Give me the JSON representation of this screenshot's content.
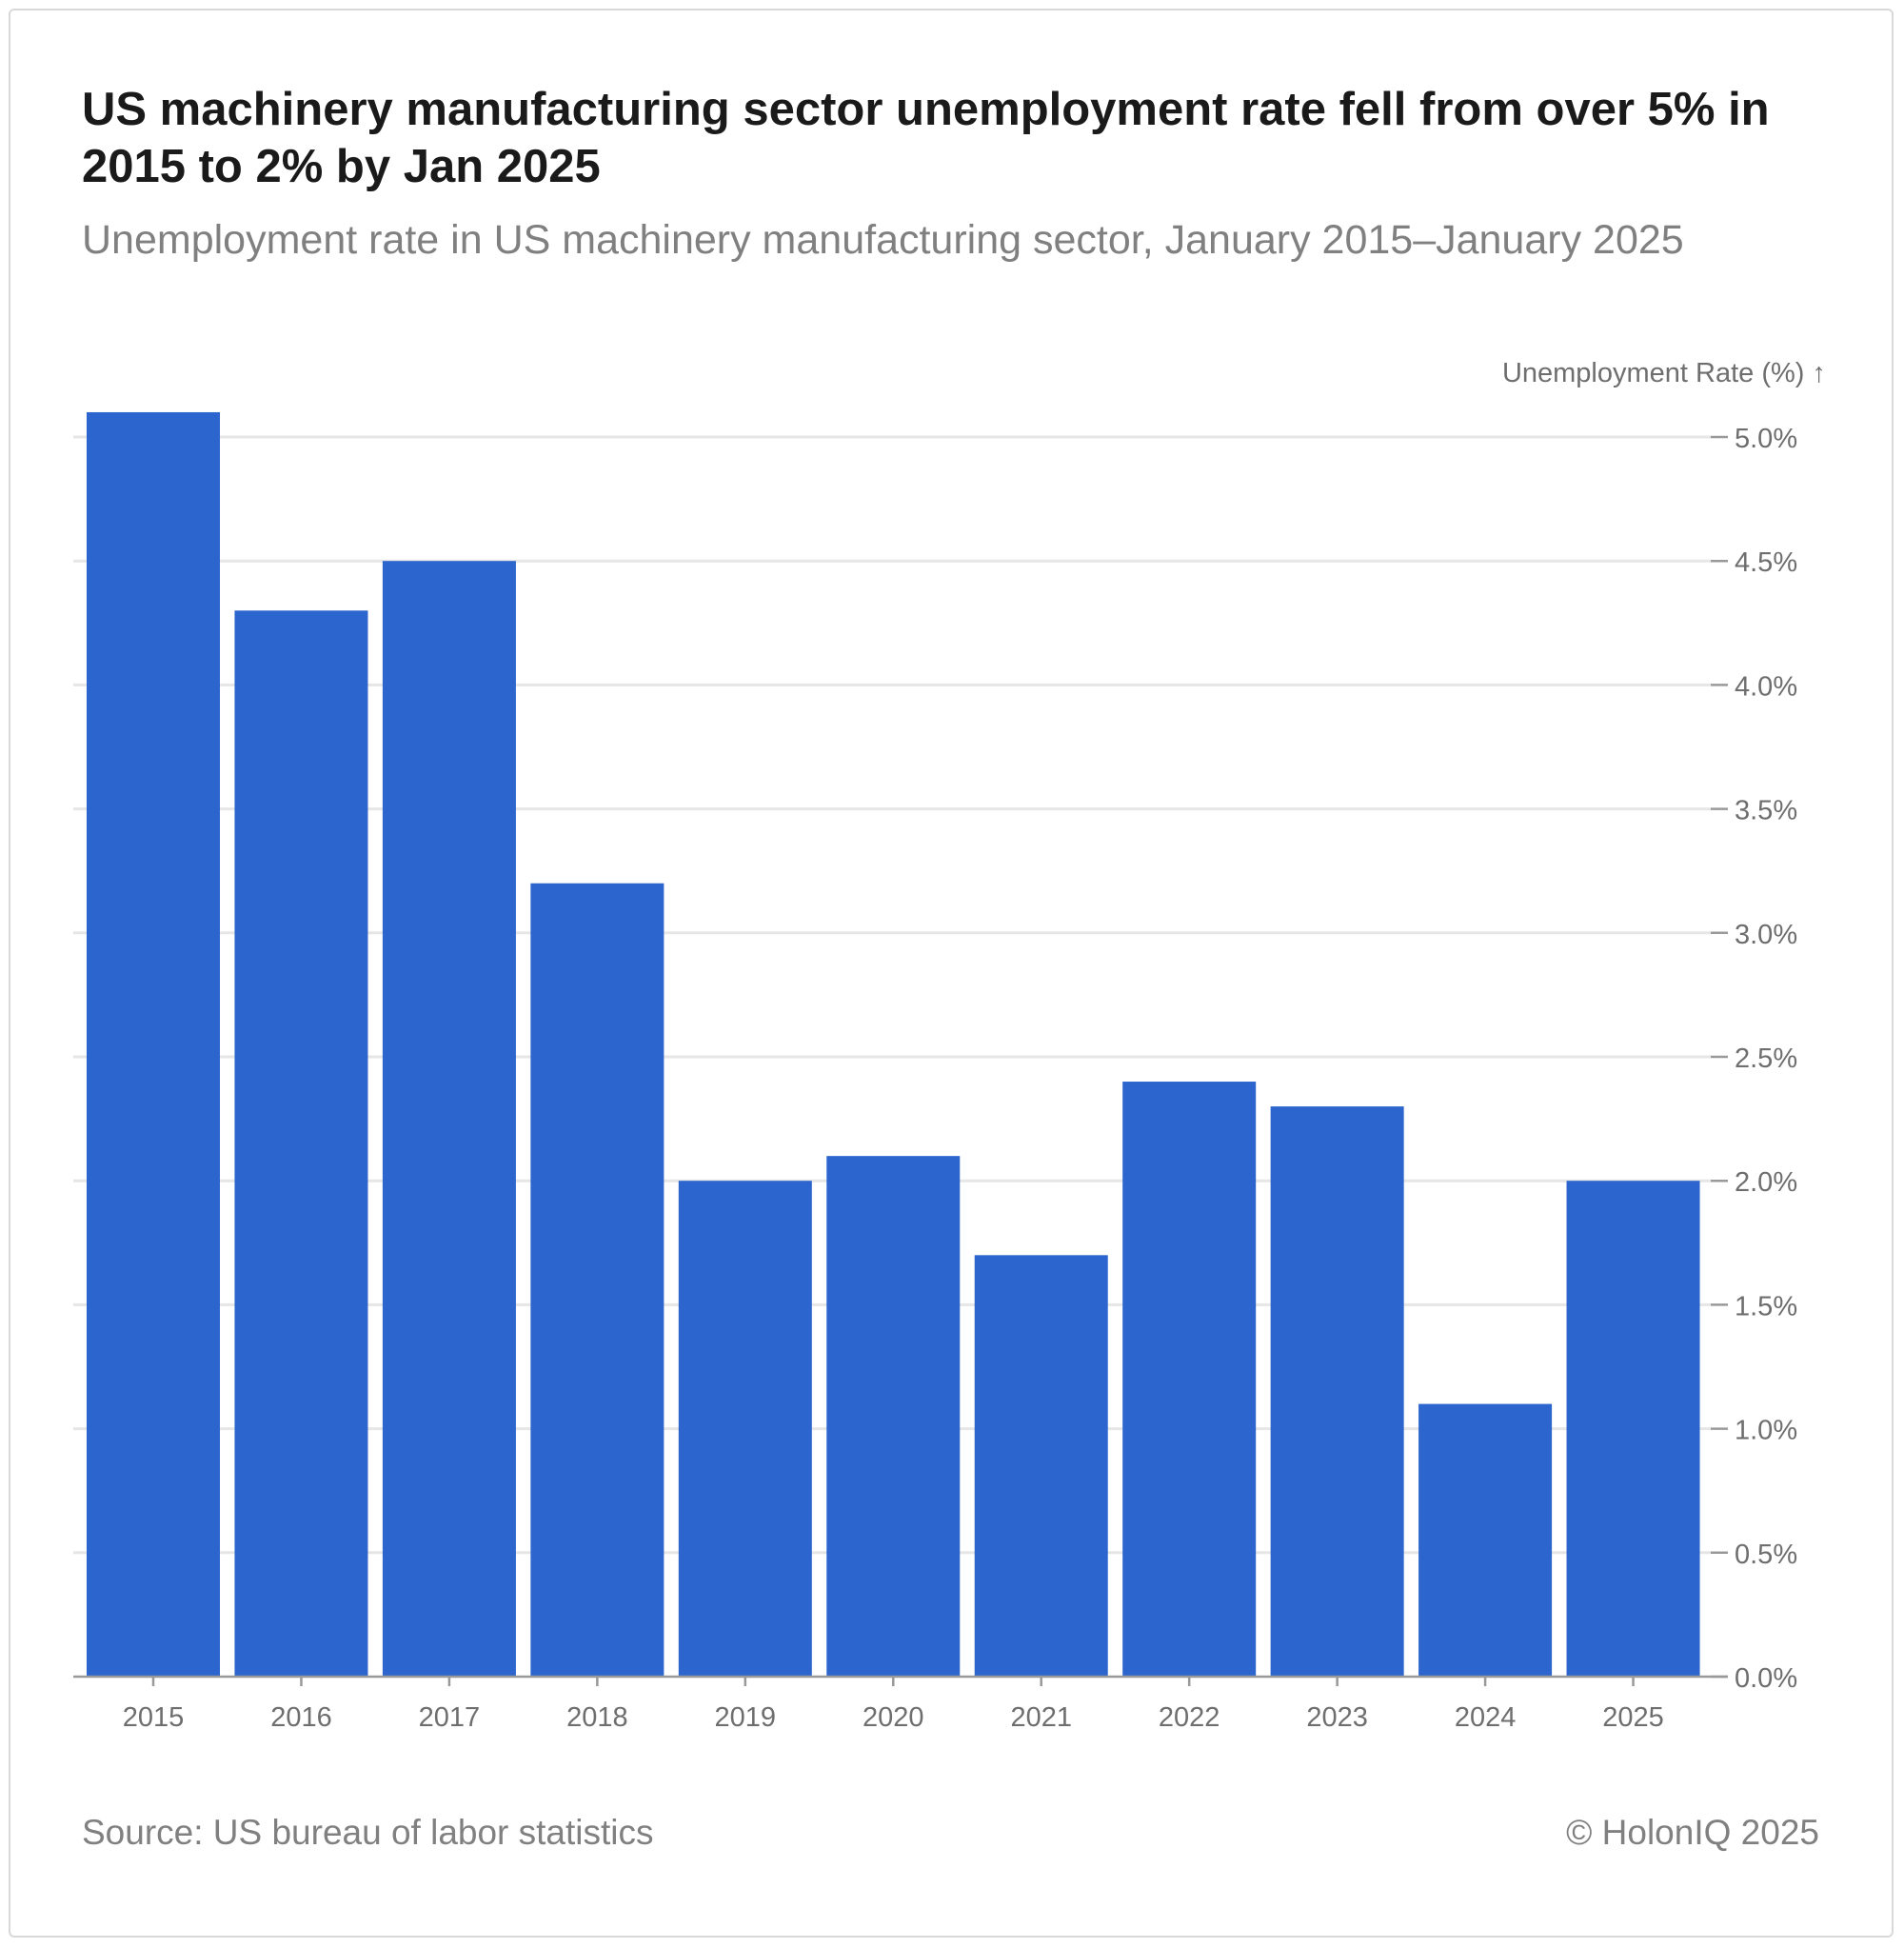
{
  "header": {
    "title": "US machinery manufacturing sector unemployment rate fell from over 5% in 2015 to 2% by Jan 2025",
    "subtitle": "Unemployment rate in US machinery manufacturing sector, January 2015–January 2025"
  },
  "footer": {
    "source": "Source: US bureau of labor statistics",
    "credit": "© HolonIQ 2025"
  },
  "chart_data": {
    "type": "bar",
    "title": "US machinery manufacturing sector unemployment rate fell from over 5% in 2015 to 2% by Jan 2025",
    "subtitle": "Unemployment rate in US machinery manufacturing sector, January 2015–January 2025",
    "xlabel": "",
    "ylabel": "Unemployment Rate (%) ↑",
    "categories": [
      "2015",
      "2016",
      "2017",
      "2018",
      "2019",
      "2020",
      "2021",
      "2022",
      "2023",
      "2024",
      "2025"
    ],
    "values": [
      5.1,
      4.3,
      4.5,
      3.2,
      2.0,
      2.1,
      1.7,
      2.4,
      2.3,
      1.1,
      2.0
    ],
    "ylim": [
      0,
      5.0
    ],
    "yticks": [
      0.0,
      0.5,
      1.0,
      1.5,
      2.0,
      2.5,
      3.0,
      3.5,
      4.0,
      4.5,
      5.0
    ],
    "ytick_labels": [
      "0.0%",
      "0.5%",
      "1.0%",
      "1.5%",
      "2.0%",
      "2.5%",
      "3.0%",
      "3.5%",
      "4.0%",
      "4.5%",
      "5.0%"
    ],
    "y_axis_side": "right",
    "grid": true,
    "legend": "none",
    "bar_color": "#2b65cd",
    "grid_color": "#e6e6e6",
    "axis_color": "#999999",
    "tick_text_color": "#6e6e6e"
  }
}
